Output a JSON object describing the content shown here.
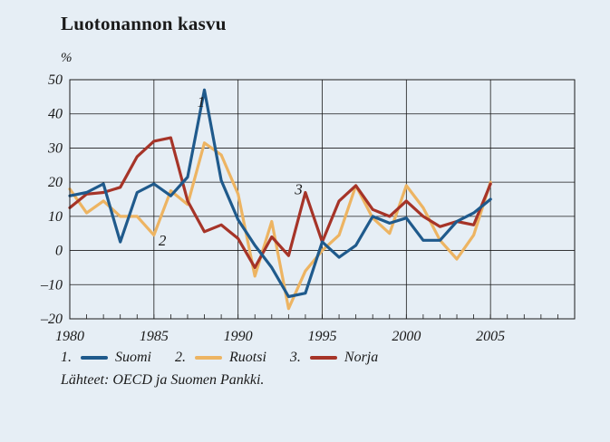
{
  "title": "Luotonannon kasvu",
  "unit_label": "%",
  "source": "Lähteet: OECD ja Suomen Pankki.",
  "chart_data": {
    "type": "line",
    "title": "Luotonannon kasvu",
    "ylabel": "%",
    "xlim": [
      1980,
      2010
    ],
    "ylim": [
      -20,
      50
    ],
    "x_ticks": [
      1980,
      1985,
      1990,
      1995,
      2000,
      2005
    ],
    "y_ticks": [
      -20,
      -10,
      0,
      10,
      20,
      30,
      40,
      50
    ],
    "y_tick_labels": [
      "–20",
      "–10",
      "0",
      "10",
      "20",
      "30",
      "40",
      "50"
    ],
    "grid": true,
    "legend_position": "bottom",
    "x": [
      1980,
      1981,
      1982,
      1983,
      1984,
      1985,
      1986,
      1987,
      1988,
      1989,
      1990,
      1991,
      1992,
      1993,
      1994,
      1995,
      1996,
      1997,
      1998,
      1999,
      2000,
      2001,
      2002,
      2003,
      2004,
      2005
    ],
    "series": [
      {
        "name": "Suomi",
        "number": "1.",
        "color": "#1f5a8c",
        "label_position": {
          "x": 1987.8,
          "y": 42
        },
        "values": [
          16,
          17,
          19.5,
          2.5,
          17,
          19.5,
          16,
          21.5,
          47,
          20.5,
          9,
          1.5,
          -5,
          -13.5,
          -12.5,
          2.5,
          -2,
          1.5,
          10,
          8,
          9.5,
          3,
          3,
          8.5,
          11,
          15
        ]
      },
      {
        "name": "Ruotsi",
        "number": "2.",
        "color": "#edb462",
        "label_position": {
          "x": 1985.5,
          "y": 1.5
        },
        "values": [
          18,
          11,
          14.5,
          10,
          10,
          4.5,
          17.5,
          13.5,
          31.5,
          28,
          16.5,
          -7.5,
          8.5,
          -17,
          -6,
          0,
          4.5,
          19,
          9.5,
          5,
          19,
          12.5,
          3,
          -2.5,
          4.5,
          20
        ]
      },
      {
        "name": "Norja",
        "number": "3.",
        "color": "#a63428",
        "label_position": {
          "x": 1993.6,
          "y": 16.5
        },
        "values": [
          12.5,
          16.5,
          17,
          18.5,
          27.5,
          32,
          33,
          14.5,
          5.5,
          7.5,
          3.5,
          -5,
          4,
          -1.5,
          17,
          2.5,
          14.5,
          19,
          12,
          10,
          14.5,
          10,
          7,
          8.5,
          7.5,
          19.5
        ]
      }
    ]
  }
}
